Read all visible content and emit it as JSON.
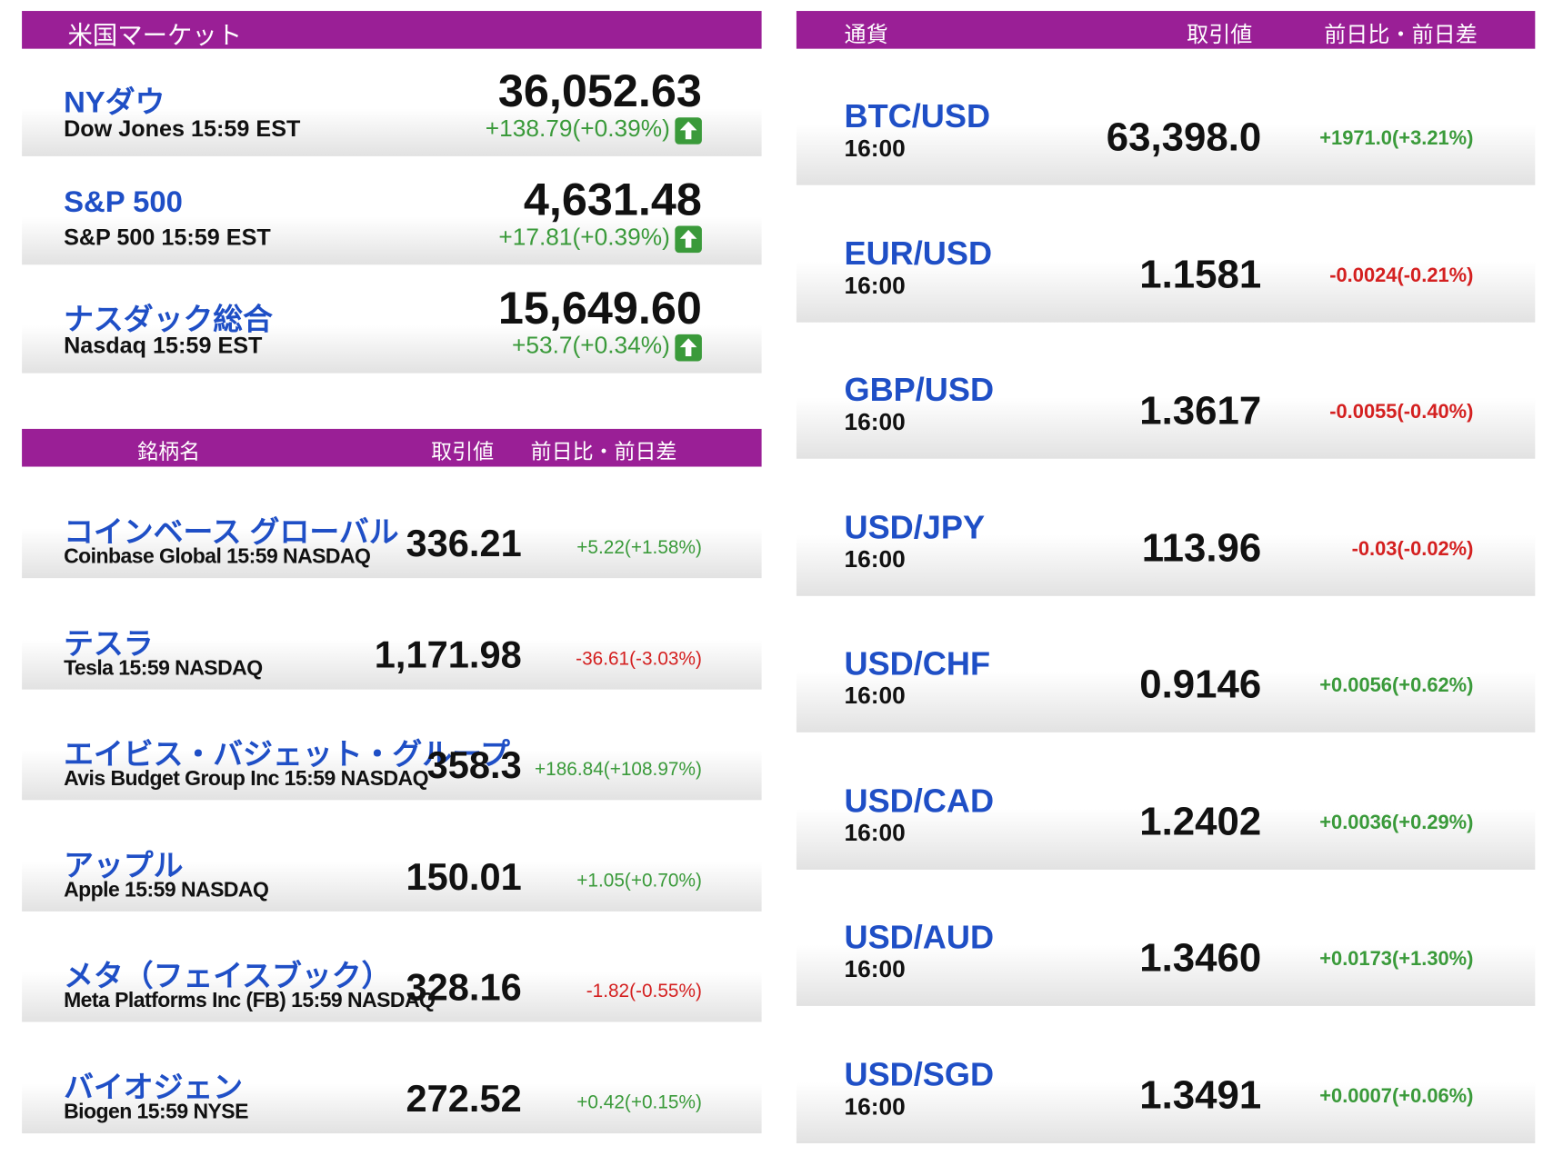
{
  "us_market": {
    "title": "米国マーケット",
    "rows": [
      {
        "name": "NYダウ",
        "sub": "Dow Jones 15:59 EST",
        "value": "36,052.63",
        "change": "+138.79(+0.39%)"
      },
      {
        "name": "S&P 500",
        "sub": "S&P 500 15:59 EST",
        "value": "4,631.48",
        "change": "+17.81(+0.39%)"
      },
      {
        "name": "ナスダック総合",
        "sub": "Nasdaq 15:59 EST",
        "value": "15,649.60",
        "change": "+53.7(+0.34%)"
      }
    ]
  },
  "stocks": {
    "headers": [
      "銘柄名",
      "取引値",
      "前日比・前日差"
    ],
    "rows": [
      {
        "name": "コインベース グローバル",
        "sub": "Coinbase Global 15:59  NASDAQ",
        "value": "336.21",
        "change": "+5.22(+1.58%)"
      },
      {
        "name": "テスラ",
        "sub": "Tesla 15:59  NASDAQ",
        "value": "1,171.98",
        "change": "-36.61(-3.03%)"
      },
      {
        "name": "エイビス・バジェット・グループ",
        "sub": "Avis Budget Group Inc 15:59  NASDAQ",
        "value": "358.3",
        "change": "+186.84(+108.97%)"
      },
      {
        "name": "アップル",
        "sub": "Apple 15:59  NASDAQ",
        "value": "150.01",
        "change": "+1.05(+0.70%)"
      },
      {
        "name": "メタ（フェイスブック）",
        "sub": "Meta Platforms Inc (FB) 15:59  NASDAQ",
        "value": "328.16",
        "change": "-1.82(-0.55%)"
      },
      {
        "name": "バイオジェン",
        "sub": "Biogen 15:59  NYSE",
        "value": "272.52",
        "change": "+0.42(+0.15%)"
      }
    ]
  },
  "currencies": {
    "headers": [
      "通貨",
      "取引値",
      "前日比・前日差"
    ],
    "rows": [
      {
        "name": "BTC/USD",
        "time": "16:00",
        "value": "63,398.0",
        "change": "+1971.0(+3.21%)"
      },
      {
        "name": "EUR/USD",
        "time": "16:00",
        "value": "1.1581",
        "change": "-0.0024(-0.21%)"
      },
      {
        "name": "GBP/USD",
        "time": "16:00",
        "value": "1.3617",
        "change": "-0.0055(-0.40%)"
      },
      {
        "name": "USD/JPY",
        "time": "16:00",
        "value": "113.96",
        "change": "-0.03(-0.02%)"
      },
      {
        "name": "USD/CHF",
        "time": "16:00",
        "value": "0.9146",
        "change": "+0.0056(+0.62%)"
      },
      {
        "name": "USD/CAD",
        "time": "16:00",
        "value": "1.2402",
        "change": "+0.0036(+0.29%)"
      },
      {
        "name": "USD/AUD",
        "time": "16:00",
        "value": "1.3460",
        "change": "+0.0173(+1.30%)"
      },
      {
        "name": "USD/SGD",
        "time": "16:00",
        "value": "1.3491",
        "change": "+0.0007(+0.06%)"
      }
    ]
  }
}
